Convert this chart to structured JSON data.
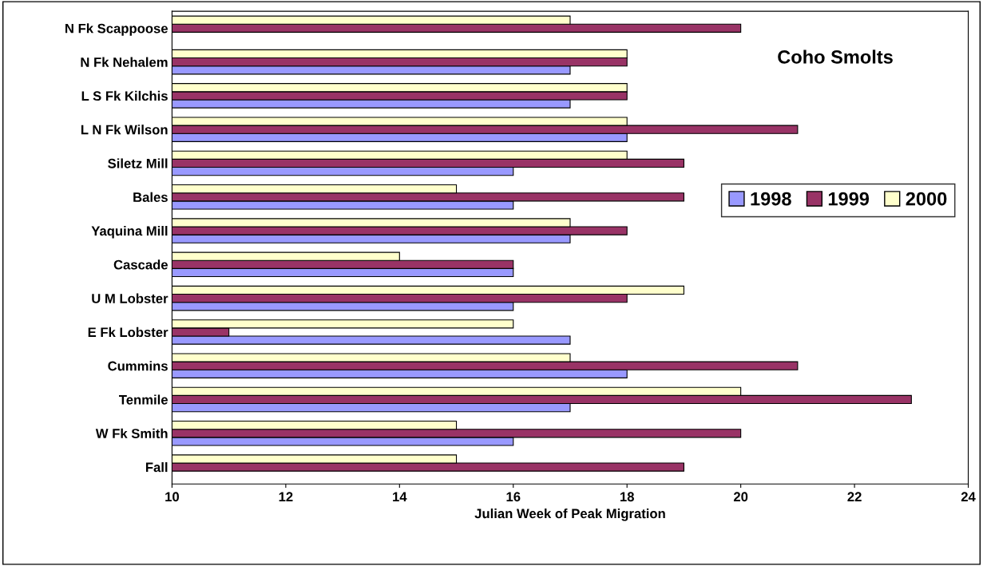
{
  "chart_data": {
    "type": "bar",
    "orientation": "horizontal",
    "title": "Coho Smolts",
    "xlabel": "Julian Week of Peak Migration",
    "categories": [
      "N Fk Scappoose",
      "N Fk Nehalem",
      "L S Fk Kilchis",
      "L N Fk Wilson",
      "Siletz Mill",
      "Bales",
      "Yaquina Mill",
      "Cascade",
      "U M Lobster",
      "E Fk Lobster",
      "Cummins",
      "Tenmile",
      "W Fk Smith",
      "Fall"
    ],
    "series": [
      {
        "name": "1998",
        "color": "#9999ff",
        "values": [
          null,
          17,
          17,
          18,
          16,
          16,
          17,
          16,
          16,
          17,
          18,
          17,
          16,
          null
        ]
      },
      {
        "name": "1999",
        "color": "#993366",
        "values": [
          20,
          18,
          18,
          21,
          19,
          19,
          18,
          16,
          18,
          11,
          21,
          23,
          20,
          19
        ]
      },
      {
        "name": "2000",
        "color": "#ffffcc",
        "values": [
          17,
          18,
          18,
          18,
          18,
          15,
          17,
          14,
          19,
          16,
          17,
          20,
          15,
          15
        ]
      }
    ],
    "xlim": [
      10,
      24
    ],
    "xticks": [
      10,
      12,
      14,
      16,
      18,
      20,
      22,
      24
    ],
    "grid": false,
    "legend": "right"
  }
}
